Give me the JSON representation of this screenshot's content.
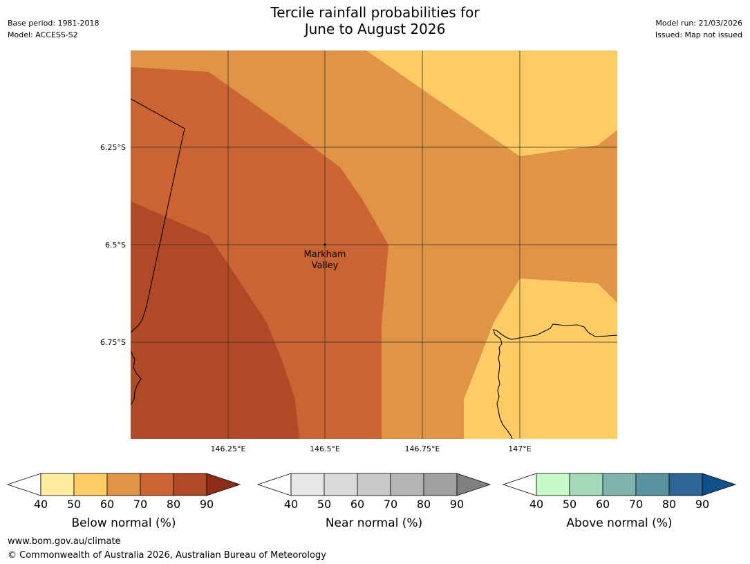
{
  "meta": {
    "base_period": "Base period: 1981-2018",
    "model": "Model: ACCESS-S2",
    "model_run": "Model run: 21/03/2026",
    "issued": "Issued: Map not issued"
  },
  "title": {
    "line1": "Tercile rainfall probabilities for",
    "line2": "June to August 2026"
  },
  "map": {
    "lat_labels": [
      "6.25°S",
      "6.5°S",
      "6.75°S"
    ],
    "lon_labels": [
      "146.25°E",
      "146.5°E",
      "146.75°E",
      "147°E"
    ],
    "place": {
      "line1": "Markham",
      "line2": "Valley"
    },
    "colors": {
      "below_40_50": "#ffeda0",
      "below_50_60": "#fecb65",
      "below_60_70": "#e09446",
      "below_70_80": "#cb6332",
      "below_80_90": "#b04a26"
    }
  },
  "colorbars": [
    {
      "name": "below",
      "label": "Below normal (%)",
      "ticks": [
        "40",
        "50",
        "60",
        "70",
        "80",
        "90"
      ],
      "colors": [
        "#ffeda0",
        "#fecb65",
        "#e09446",
        "#cb6332",
        "#b04a26"
      ],
      "extend_color": "#8c2d18"
    },
    {
      "name": "near",
      "label": "Near normal (%)",
      "ticks": [
        "40",
        "50",
        "60",
        "70",
        "80",
        "90"
      ],
      "colors": [
        "#e6e6e6",
        "#d9d9d9",
        "#c8c8c8",
        "#b4b4b4",
        "#a0a0a0"
      ],
      "extend_color": "#808080"
    },
    {
      "name": "above",
      "label": "Above normal (%)",
      "ticks": [
        "40",
        "50",
        "60",
        "70",
        "80",
        "90"
      ],
      "colors": [
        "#c8fac8",
        "#a3d8b8",
        "#80b3ad",
        "#5a93a0",
        "#2e6496"
      ],
      "extend_color": "#10508a"
    }
  ],
  "footer": {
    "url": "www.bom.gov.au/climate",
    "copyright": "© Commonwealth of Australia 2026, Australian Bureau of Meteorology"
  }
}
